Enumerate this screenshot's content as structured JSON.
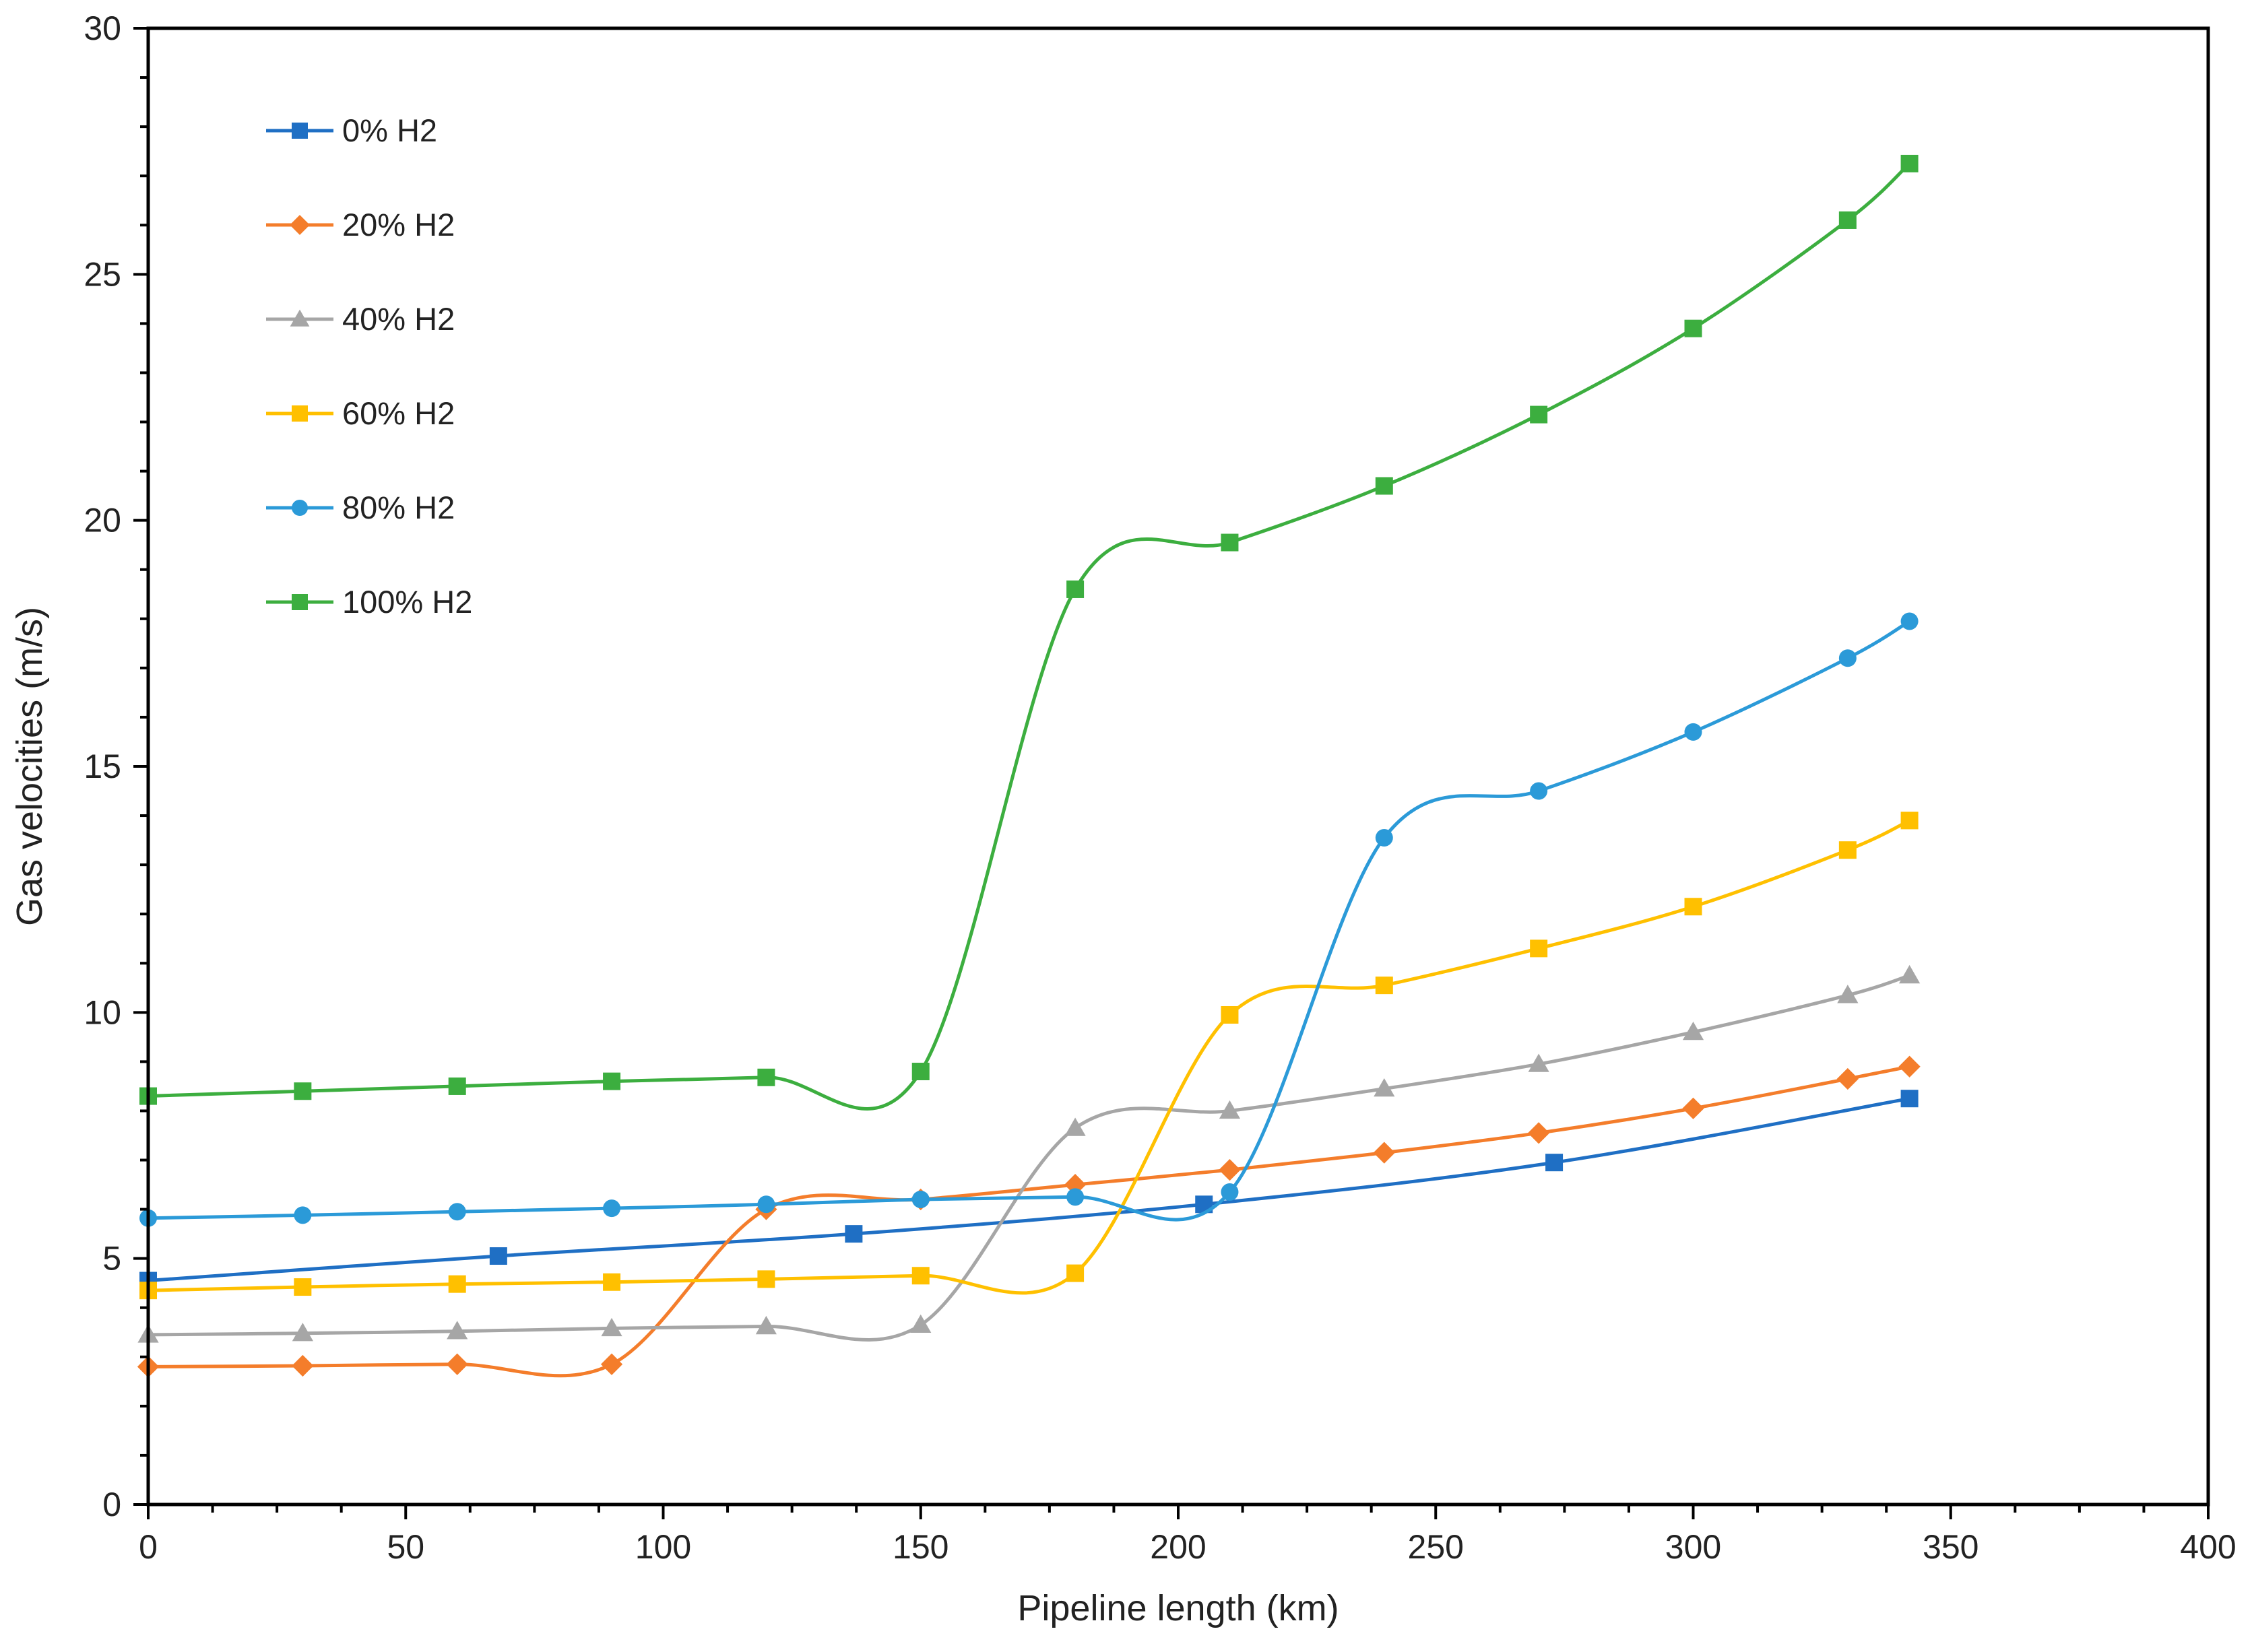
{
  "chart_data": {
    "type": "line",
    "title": "",
    "xlabel": "Pipeline length (km)",
    "ylabel": "Gas velocities (m/s)",
    "xlim": [
      0,
      400
    ],
    "ylim": [
      0,
      30
    ],
    "xticks": [
      0,
      50,
      100,
      150,
      200,
      250,
      300,
      350,
      400
    ],
    "yticks": [
      0,
      5,
      10,
      15,
      20,
      25,
      30
    ],
    "grid": false,
    "legend_position": "top-left inside",
    "series": [
      {
        "name": "0% H2",
        "color": "#1f6fc4",
        "marker": "square",
        "x": [
          0,
          68,
          137,
          205,
          273,
          342
        ],
        "y": [
          4.55,
          5.05,
          5.5,
          6.1,
          6.95,
          8.25
        ]
      },
      {
        "name": "20% H2",
        "color": "#f47d2b",
        "marker": "diamond",
        "x": [
          0,
          30,
          60,
          90,
          120,
          150,
          180,
          210,
          240,
          270,
          300,
          330,
          342
        ],
        "y": [
          2.8,
          2.82,
          2.85,
          2.85,
          6.0,
          6.2,
          6.5,
          6.8,
          7.15,
          7.55,
          8.05,
          8.65,
          8.9
        ]
      },
      {
        "name": "40% H2",
        "color": "#a6a6a6",
        "marker": "triangle",
        "x": [
          0,
          30,
          60,
          90,
          120,
          150,
          180,
          210,
          240,
          270,
          300,
          330,
          342
        ],
        "y": [
          3.45,
          3.48,
          3.52,
          3.58,
          3.62,
          3.65,
          7.65,
          8.0,
          8.45,
          8.95,
          9.6,
          10.35,
          10.75
        ]
      },
      {
        "name": "60% H2",
        "color": "#ffc000",
        "marker": "square",
        "x": [
          0,
          30,
          60,
          90,
          120,
          150,
          180,
          210,
          240,
          270,
          300,
          330,
          342
        ],
        "y": [
          4.35,
          4.42,
          4.48,
          4.52,
          4.58,
          4.65,
          4.7,
          9.95,
          10.55,
          11.3,
          12.15,
          13.3,
          13.9
        ]
      },
      {
        "name": "80% H2",
        "color": "#2b9ad8",
        "marker": "circle",
        "x": [
          0,
          30,
          60,
          90,
          120,
          150,
          180,
          210,
          240,
          270,
          300,
          330,
          342
        ],
        "y": [
          5.82,
          5.88,
          5.95,
          6.02,
          6.1,
          6.2,
          6.25,
          6.35,
          13.55,
          14.5,
          15.7,
          17.2,
          17.95
        ]
      },
      {
        "name": "100% H2",
        "color": "#3cae3f",
        "marker": "square",
        "x": [
          0,
          30,
          60,
          90,
          120,
          150,
          180,
          210,
          240,
          270,
          300,
          330,
          342
        ],
        "y": [
          8.3,
          8.4,
          8.5,
          8.6,
          8.68,
          8.8,
          18.6,
          19.55,
          20.7,
          22.15,
          23.9,
          26.1,
          27.25
        ]
      }
    ]
  }
}
